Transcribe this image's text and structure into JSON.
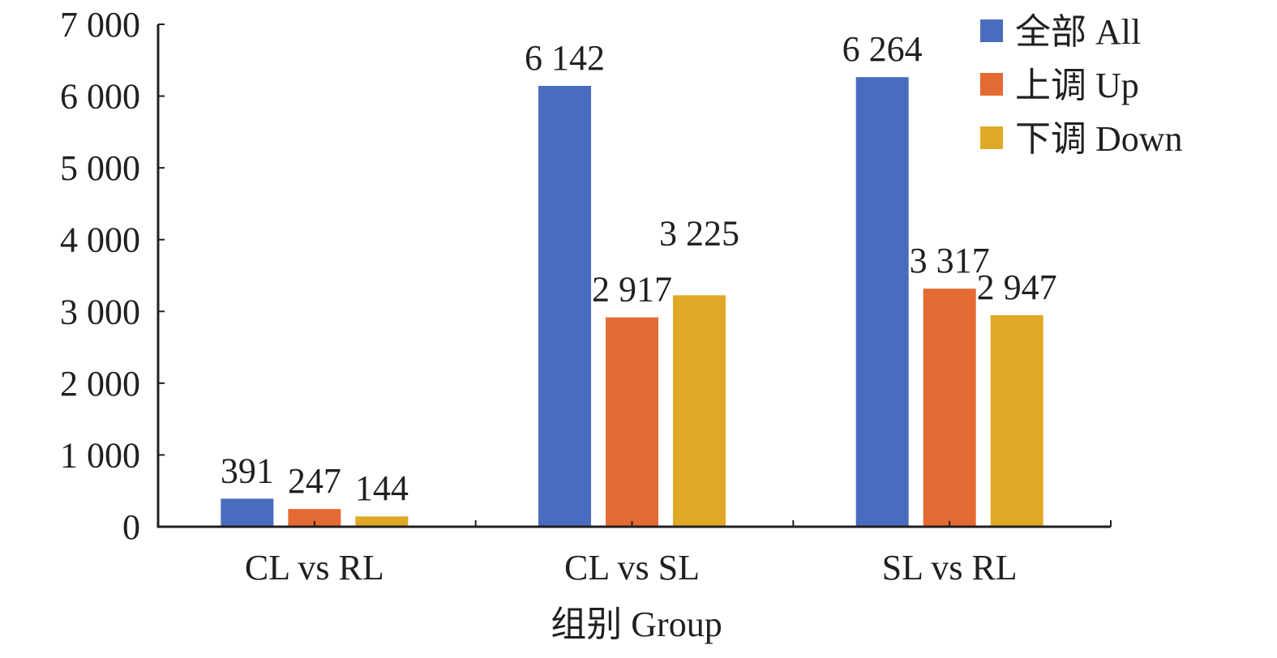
{
  "chart_data": {
    "type": "bar",
    "title": "",
    "xlabel": "组别 Group",
    "ylabel": "",
    "ylim": [
      0,
      7000
    ],
    "yticks": [
      0,
      1000,
      2000,
      3000,
      4000,
      5000,
      6000,
      7000
    ],
    "ytick_labels": [
      "0",
      "1 000",
      "2 000",
      "3 000",
      "4 000",
      "5 000",
      "6 000",
      "7 000"
    ],
    "categories": [
      "CL vs RL",
      "CL vs SL",
      "SL vs RL"
    ],
    "series": [
      {
        "name": "全部 All",
        "color": "#4a6cbe",
        "values": [
          391,
          6142,
          6264
        ],
        "labels": [
          "391",
          "6 142",
          "6 264"
        ]
      },
      {
        "name": "上调 Up",
        "color": "#e46a33",
        "values": [
          247,
          2917,
          3317
        ],
        "labels": [
          "247",
          "2 917",
          "3 317"
        ]
      },
      {
        "name": "下调 Down",
        "color": "#e0a826",
        "values": [
          144,
          3225,
          2947
        ],
        "labels": [
          "144",
          "3 225",
          "2 947"
        ]
      }
    ],
    "grid": false,
    "legend_position": "top-right"
  }
}
